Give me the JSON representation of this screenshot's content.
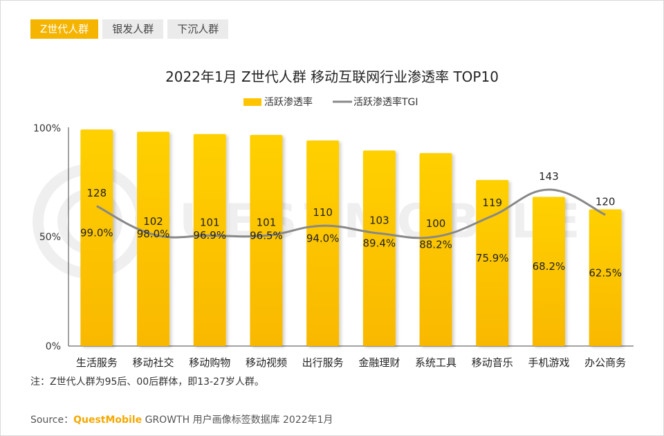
{
  "tabs": [
    {
      "label": "Z世代人群",
      "active": true
    },
    {
      "label": "银发人群",
      "active": false
    },
    {
      "label": "下沉人群",
      "active": false
    }
  ],
  "note": "注：Z世代人群为95后、00后群体，即13-27岁人群。",
  "source": {
    "prefix": "Source：",
    "brand": "QuestMobile",
    "suffix": " GROWTH 用户画像标签数据库 2022年1月"
  },
  "watermark": "QUESTMOBILE",
  "colors": {
    "bar_top": "#ffd000",
    "bar_bottom": "#f9b800",
    "line": "#888888",
    "tab_active": "#f5b400",
    "brand": "#f5a800"
  },
  "chart_data": {
    "type": "bar",
    "title": "2022年1月 Z世代人群 移动互联网行业渗透率 TOP10",
    "categories": [
      "生活服务",
      "移动社交",
      "移动购物",
      "移动视频",
      "出行服务",
      "金融理财",
      "系统工具",
      "移动音乐",
      "手机游戏",
      "办公商务"
    ],
    "series": [
      {
        "name": "活跃渗透率",
        "type": "bar",
        "axis": "left",
        "values": [
          99.0,
          98.0,
          96.9,
          96.5,
          94.0,
          89.4,
          88.2,
          75.9,
          68.2,
          62.5
        ],
        "labels": [
          "99.0%",
          "98.0%",
          "96.9%",
          "96.5%",
          "94.0%",
          "89.4%",
          "88.2%",
          "75.9%",
          "68.2%",
          "62.5%"
        ]
      },
      {
        "name": "活跃渗透率TGI",
        "type": "line",
        "axis": "secondary",
        "values": [
          128,
          102,
          101,
          101,
          110,
          103,
          100,
          119,
          143,
          120
        ],
        "labels": [
          "128",
          "102",
          "101",
          "101",
          "110",
          "103",
          "100",
          "119",
          "143",
          "120"
        ]
      }
    ],
    "y_ticks": [
      "100%",
      "50%",
      "0%"
    ],
    "ylim": [
      0,
      100
    ],
    "y2lim": [
      0,
      200
    ],
    "legend": "top-center",
    "grid": false
  }
}
